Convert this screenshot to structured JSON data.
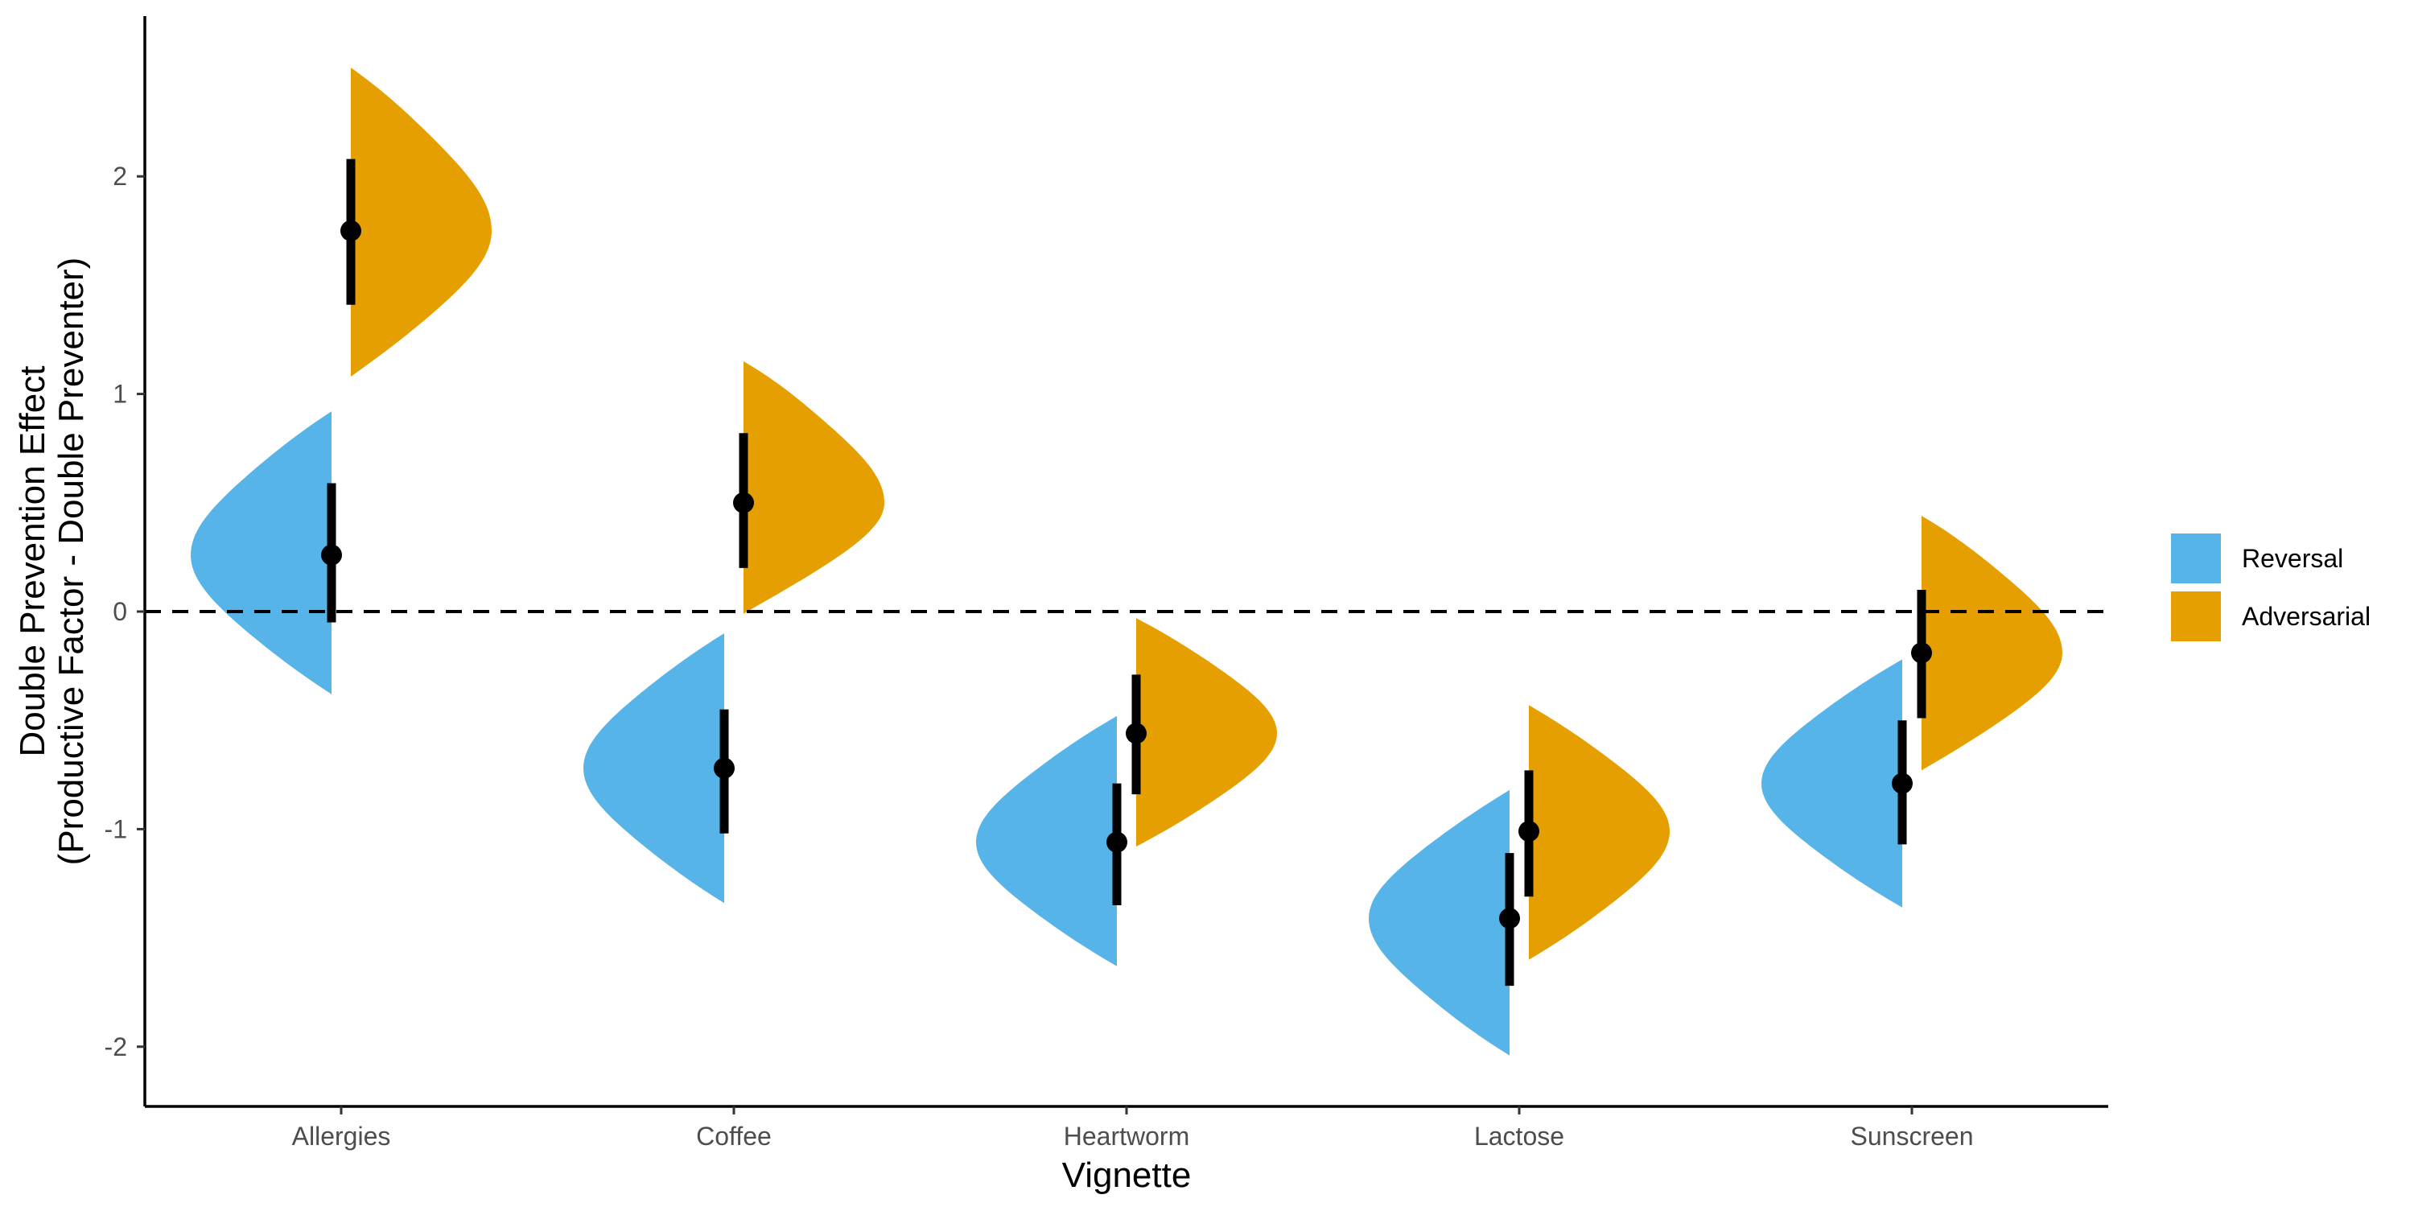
{
  "chart_data": {
    "type": "half-violin with point-interval",
    "title": "",
    "xlabel": "Vignette",
    "ylabel": [
      "Double Prevention Effect",
      "(Productive Factor - Double Preventer)"
    ],
    "categories": [
      "Allergies",
      "Coffee",
      "Heartworm",
      "Lactose",
      "Sunscreen"
    ],
    "ylim": [
      -2.27,
      2.72
    ],
    "yticks": [
      -2,
      -1,
      0,
      1,
      2
    ],
    "reference_line": {
      "y": 0,
      "style": "dashed"
    },
    "grid": false,
    "legend_position": "right",
    "series": [
      {
        "name": "Reversal",
        "color": "#56B4E9",
        "side": "left",
        "points": [
          0.26,
          -0.72,
          -1.06,
          -1.41,
          -0.79
        ],
        "interval_low": [
          -0.05,
          -1.02,
          -1.35,
          -1.72,
          -1.07
        ],
        "interval_high": [
          0.59,
          -0.45,
          -0.79,
          -1.11,
          -0.5
        ],
        "density_range_low": [
          -0.38,
          -1.34,
          -1.63,
          -2.04,
          -1.36
        ],
        "density_range_high": [
          0.92,
          -0.1,
          -0.48,
          -0.82,
          -0.22
        ]
      },
      {
        "name": "Adversarial",
        "color": "#E69F00",
        "side": "right",
        "points": [
          1.75,
          0.5,
          -0.56,
          -1.01,
          -0.19
        ],
        "interval_low": [
          1.41,
          0.2,
          -0.84,
          -1.31,
          -0.49
        ],
        "interval_high": [
          2.08,
          0.82,
          -0.29,
          -0.73,
          0.1
        ],
        "density_range_low": [
          1.08,
          -0.01,
          -1.08,
          -1.6,
          -0.73
        ],
        "density_range_high": [
          2.5,
          1.15,
          -0.03,
          -0.43,
          0.44
        ]
      }
    ]
  }
}
